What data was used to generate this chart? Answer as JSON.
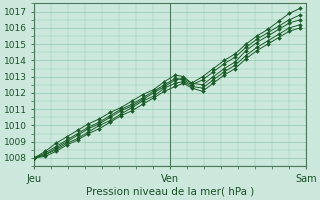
{
  "title": "Pression niveau de la mer( hPa )",
  "xlabel_ticks": [
    "Jeu",
    "Ven",
    "Sam"
  ],
  "xlabel_tick_positions": [
    0.0,
    0.5,
    1.0
  ],
  "ylim": [
    1007.5,
    1017.5
  ],
  "yticks": [
    1008,
    1009,
    1010,
    1011,
    1012,
    1013,
    1014,
    1015,
    1016,
    1017
  ],
  "xlim": [
    0.0,
    1.0
  ],
  "bg_color": "#cce8dc",
  "grid_color": "#8ec8b0",
  "line_color": "#1a5c28",
  "marker": "D",
  "markersize": 2.0,
  "linewidth": 0.7,
  "series": [
    {
      "x": [
        0.0,
        0.04,
        0.08,
        0.12,
        0.16,
        0.2,
        0.24,
        0.28,
        0.32,
        0.36,
        0.4,
        0.44,
        0.48,
        0.52,
        0.55,
        0.58,
        0.62,
        0.66,
        0.7,
        0.74,
        0.78,
        0.82,
        0.86,
        0.9,
        0.94,
        0.98
      ],
      "y": [
        1008.0,
        1008.4,
        1008.9,
        1009.3,
        1009.7,
        1010.1,
        1010.4,
        1010.8,
        1011.1,
        1011.5,
        1011.9,
        1012.2,
        1012.7,
        1013.1,
        1013.0,
        1012.6,
        1013.0,
        1013.5,
        1014.0,
        1014.4,
        1015.0,
        1015.5,
        1015.9,
        1016.4,
        1016.9,
        1017.2
      ]
    },
    {
      "x": [
        0.0,
        0.04,
        0.08,
        0.12,
        0.16,
        0.2,
        0.24,
        0.28,
        0.32,
        0.36,
        0.4,
        0.44,
        0.48,
        0.52,
        0.55,
        0.58,
        0.62,
        0.66,
        0.7,
        0.74,
        0.78,
        0.82,
        0.86,
        0.9,
        0.94,
        0.98
      ],
      "y": [
        1008.0,
        1008.3,
        1008.7,
        1009.1,
        1009.5,
        1009.9,
        1010.2,
        1010.6,
        1011.0,
        1011.3,
        1011.7,
        1012.1,
        1012.5,
        1012.9,
        1012.8,
        1012.5,
        1012.8,
        1013.3,
        1013.8,
        1014.2,
        1014.8,
        1015.3,
        1015.7,
        1016.1,
        1016.5,
        1016.8
      ]
    },
    {
      "x": [
        0.0,
        0.04,
        0.08,
        0.12,
        0.16,
        0.2,
        0.24,
        0.28,
        0.32,
        0.36,
        0.4,
        0.44,
        0.48,
        0.52,
        0.55,
        0.58,
        0.62,
        0.66,
        0.7,
        0.74,
        0.78,
        0.82,
        0.86,
        0.9,
        0.94,
        0.98
      ],
      "y": [
        1008.0,
        1008.2,
        1008.6,
        1009.0,
        1009.4,
        1009.8,
        1010.1,
        1010.5,
        1010.9,
        1011.2,
        1011.6,
        1012.0,
        1012.4,
        1012.8,
        1012.9,
        1012.6,
        1012.5,
        1013.0,
        1013.5,
        1013.9,
        1014.6,
        1015.1,
        1015.5,
        1015.9,
        1016.3,
        1016.5
      ]
    },
    {
      "x": [
        0.0,
        0.04,
        0.08,
        0.12,
        0.16,
        0.2,
        0.24,
        0.28,
        0.32,
        0.36,
        0.4,
        0.44,
        0.48,
        0.52,
        0.55,
        0.58,
        0.62,
        0.66,
        0.7,
        0.74,
        0.78,
        0.82,
        0.86,
        0.9,
        0.94,
        0.98
      ],
      "y": [
        1008.0,
        1008.2,
        1008.5,
        1008.9,
        1009.2,
        1009.6,
        1010.0,
        1010.3,
        1010.7,
        1011.1,
        1011.5,
        1011.8,
        1012.3,
        1012.6,
        1012.7,
        1012.4,
        1012.3,
        1012.8,
        1013.3,
        1013.7,
        1014.3,
        1014.8,
        1015.2,
        1015.6,
        1016.0,
        1016.2
      ]
    },
    {
      "x": [
        0.0,
        0.04,
        0.08,
        0.12,
        0.16,
        0.2,
        0.24,
        0.28,
        0.32,
        0.36,
        0.4,
        0.44,
        0.48,
        0.52,
        0.55,
        0.58,
        0.62,
        0.66,
        0.7,
        0.74,
        0.78,
        0.82,
        0.86,
        0.9,
        0.94,
        0.98
      ],
      "y": [
        1008.0,
        1008.1,
        1008.4,
        1008.8,
        1009.1,
        1009.5,
        1009.8,
        1010.2,
        1010.6,
        1010.9,
        1011.3,
        1011.7,
        1012.1,
        1012.4,
        1012.6,
        1012.3,
        1012.1,
        1012.6,
        1013.1,
        1013.5,
        1014.1,
        1014.6,
        1015.0,
        1015.4,
        1015.8,
        1016.0
      ]
    }
  ]
}
